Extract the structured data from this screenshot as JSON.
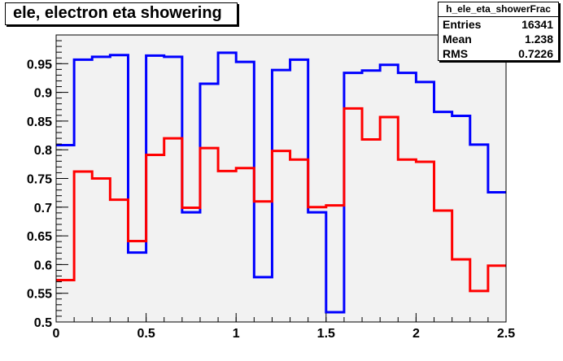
{
  "title": "ele, electron eta showering",
  "stats": {
    "name": "h_ele_eta_showerFrac",
    "rows": [
      {
        "label": "Entries",
        "value": "16341"
      },
      {
        "label": "Mean",
        "value": "1.238"
      },
      {
        "label": "RMS",
        "value": "0.7226"
      }
    ]
  },
  "chart_data": {
    "type": "line",
    "title": "ele, electron eta showering",
    "xlim": [
      0,
      2.5
    ],
    "ylim": [
      0.5,
      1.0
    ],
    "xticks": [
      {
        "v": 0,
        "label": "0"
      },
      {
        "v": 0.5,
        "label": "0.5"
      },
      {
        "v": 1,
        "label": "1"
      },
      {
        "v": 1.5,
        "label": "1.5"
      },
      {
        "v": 2,
        "label": "2"
      },
      {
        "v": 2.5,
        "label": "2.5"
      }
    ],
    "yticks": [
      {
        "v": 0.5,
        "label": "0.5"
      },
      {
        "v": 0.55,
        "label": "0.55"
      },
      {
        "v": 0.6,
        "label": "0.6"
      },
      {
        "v": 0.65,
        "label": "0.65"
      },
      {
        "v": 0.7,
        "label": "0.7"
      },
      {
        "v": 0.75,
        "label": "0.75"
      },
      {
        "v": 0.8,
        "label": "0.8"
      },
      {
        "v": 0.85,
        "label": "0.85"
      },
      {
        "v": 0.9,
        "label": "0.9"
      },
      {
        "v": 0.95,
        "label": "0.95"
      }
    ],
    "bin_edges": [
      0,
      0.1,
      0.2,
      0.3,
      0.4,
      0.5,
      0.6,
      0.7,
      0.8,
      0.9,
      1.0,
      1.1,
      1.2,
      1.3,
      1.4,
      1.5,
      1.6,
      1.7,
      1.8,
      1.9,
      2.0,
      2.1,
      2.2,
      2.3,
      2.4,
      2.5
    ],
    "series": [
      {
        "color": "#0000ff",
        "values": [
          0.808,
          0.957,
          0.962,
          0.965,
          0.621,
          0.964,
          0.962,
          0.691,
          0.915,
          0.969,
          0.953,
          0.578,
          0.939,
          0.957,
          0.691,
          0.517,
          0.934,
          0.938,
          0.948,
          0.934,
          0.918,
          0.866,
          0.859,
          0.809,
          0.726
        ]
      },
      {
        "color": "#ff0000",
        "values": [
          0.573,
          0.762,
          0.75,
          0.713,
          0.641,
          0.791,
          0.82,
          0.699,
          0.803,
          0.763,
          0.768,
          0.71,
          0.798,
          0.783,
          0.7,
          0.703,
          0.872,
          0.818,
          0.857,
          0.783,
          0.779,
          0.694,
          0.609,
          0.554,
          0.598
        ]
      }
    ],
    "background": "#f2f2f2",
    "grid": false
  }
}
